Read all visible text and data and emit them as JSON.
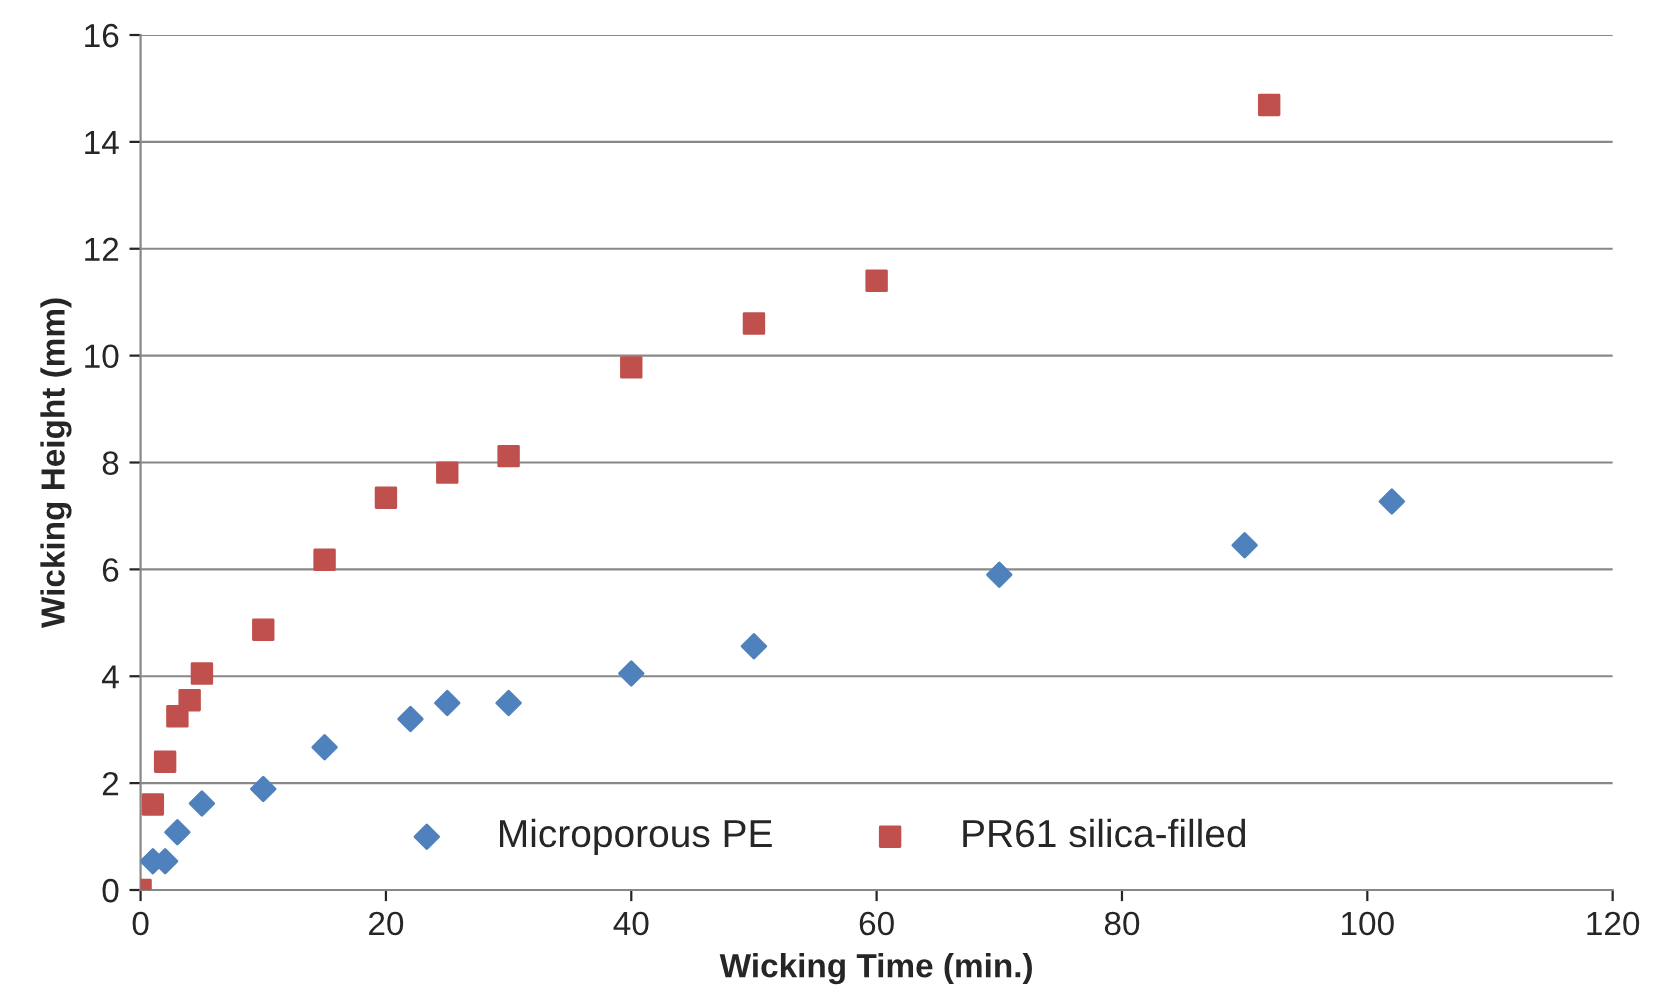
{
  "chart_data": {
    "type": "scatter",
    "xlabel": "Wicking Time (min.)",
    "ylabel": "Wicking Height (mm)",
    "xlim": [
      0,
      120
    ],
    "xticks": [
      0,
      20,
      40,
      60,
      80,
      100,
      120
    ],
    "ylim": [
      0,
      16
    ],
    "yticks": [
      0,
      2,
      4,
      6,
      8,
      10,
      12,
      14,
      16
    ],
    "grid": "y",
    "legend": "bottom",
    "series": [
      {
        "name": "Microporous PE",
        "color": "#4f81bd",
        "marker": "diamond",
        "x": [
          1,
          2,
          3,
          5,
          10,
          15,
          22,
          25,
          30,
          40,
          50,
          70,
          90,
          102
        ],
        "values": [
          0.54,
          0.54,
          1.08,
          1.62,
          1.89,
          2.67,
          3.2,
          3.5,
          3.5,
          4.05,
          4.56,
          5.9,
          6.45,
          7.27
        ]
      },
      {
        "name": "PR61 silica-filled",
        "color": "#c0504d",
        "marker": "square",
        "x": [
          0,
          1,
          2,
          3,
          4,
          5,
          10,
          15,
          20,
          25,
          30,
          40,
          50,
          60,
          92
        ],
        "values": [
          0,
          1.6,
          2.4,
          3.25,
          3.55,
          4.05,
          4.87,
          6.18,
          7.34,
          7.81,
          8.12,
          9.78,
          10.6,
          11.4,
          14.69
        ]
      }
    ]
  }
}
